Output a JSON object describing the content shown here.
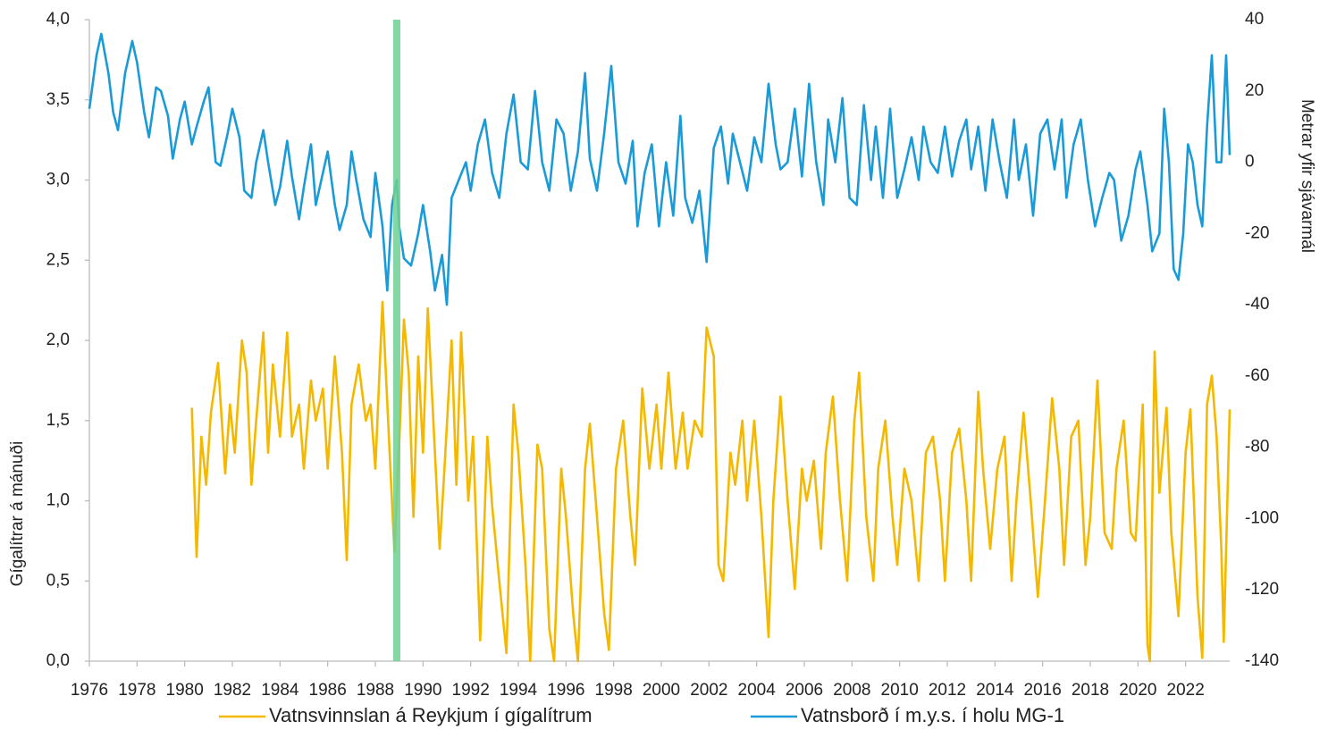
{
  "chart_data": {
    "type": "line",
    "y_title": "Gígalítrar á mánuði",
    "y2_title": "Metrar yfir sjávarmál",
    "xlim": [
      1976,
      2023.85
    ],
    "xticks": [
      1976,
      1978,
      1980,
      1982,
      1984,
      1986,
      1988,
      1990,
      1992,
      1994,
      1996,
      1998,
      2000,
      2002,
      2004,
      2006,
      2008,
      2010,
      2012,
      2014,
      2016,
      2018,
      2020,
      2022
    ],
    "ylim": [
      0,
      4
    ],
    "yticks": [
      {
        "value": 0,
        "label": "0,0"
      },
      {
        "value": 0.5,
        "label": "0,5"
      },
      {
        "value": 1,
        "label": "1,0"
      },
      {
        "value": 1.5,
        "label": "1,5"
      },
      {
        "value": 2,
        "label": "2,0"
      },
      {
        "value": 2.5,
        "label": "2,5"
      },
      {
        "value": 3,
        "label": "3,0"
      },
      {
        "value": 3.5,
        "label": "3,5"
      },
      {
        "value": 4,
        "label": "4,0"
      }
    ],
    "y2lim": [
      -140,
      40
    ],
    "y2ticks": [
      -140,
      -120,
      -100,
      -80,
      -60,
      -40,
      -20,
      0,
      20,
      40
    ],
    "highlight_x": 1988.9,
    "highlight_color": "#6fcf93",
    "series": [
      {
        "name": "Vatnsvinnslan á Reykjum í gígalítrum",
        "color": "#f5b800",
        "axis": "y",
        "x": [
          1980.3,
          1980.5,
          1980.7,
          1980.9,
          1981.1,
          1981.4,
          1981.7,
          1981.9,
          1982.1,
          1982.4,
          1982.6,
          1982.8,
          1983.0,
          1983.3,
          1983.5,
          1983.7,
          1984.0,
          1984.3,
          1984.5,
          1984.8,
          1985.0,
          1985.3,
          1985.5,
          1985.8,
          1986.0,
          1986.3,
          1986.6,
          1986.8,
          1987.0,
          1987.3,
          1987.6,
          1987.8,
          1988.0,
          1988.3,
          1988.6,
          1988.8,
          1989.0,
          1989.2,
          1989.4,
          1989.6,
          1989.8,
          1990.0,
          1990.2,
          1990.5,
          1990.7,
          1990.9,
          1991.2,
          1991.4,
          1991.6,
          1991.9,
          1992.1,
          1992.4,
          1992.7,
          1992.9,
          1993.2,
          1993.5,
          1993.8,
          1994.0,
          1994.3,
          1994.5,
          1994.8,
          1995.0,
          1995.3,
          1995.5,
          1995.8,
          1996.0,
          1996.3,
          1996.5,
          1996.8,
          1997.0,
          1997.3,
          1997.6,
          1997.8,
          1998.1,
          1998.4,
          1998.7,
          1998.9,
          1999.2,
          1999.5,
          1999.8,
          2000.0,
          2000.3,
          2000.6,
          2000.9,
          2001.1,
          2001.4,
          2001.7,
          2001.9,
          2002.2,
          2002.4,
          2002.6,
          2002.9,
          2003.1,
          2003.4,
          2003.6,
          2003.9,
          2004.2,
          2004.5,
          2004.7,
          2005.0,
          2005.3,
          2005.6,
          2005.9,
          2006.1,
          2006.4,
          2006.7,
          2006.9,
          2007.2,
          2007.5,
          2007.8,
          2008.1,
          2008.3,
          2008.6,
          2008.9,
          2009.1,
          2009.4,
          2009.7,
          2009.9,
          2010.2,
          2010.5,
          2010.8,
          2011.1,
          2011.4,
          2011.7,
          2011.9,
          2012.2,
          2012.5,
          2012.8,
          2013.0,
          2013.3,
          2013.5,
          2013.8,
          2014.1,
          2014.4,
          2014.7,
          2014.9,
          2015.2,
          2015.5,
          2015.8,
          2016.1,
          2016.4,
          2016.7,
          2016.9,
          2017.2,
          2017.5,
          2017.8,
          2018.0,
          2018.3,
          2018.6,
          2018.9,
          2019.1,
          2019.4,
          2019.7,
          2019.9,
          2020.2,
          2020.4,
          2020.5,
          2020.7,
          2020.9,
          2021.2,
          2021.4,
          2021.7,
          2022.0,
          2022.2,
          2022.5,
          2022.7,
          2022.9,
          2023.1,
          2023.3,
          2023.5,
          2023.6,
          2023.85
        ],
        "values": [
          1.58,
          0.65,
          1.4,
          1.1,
          1.55,
          1.86,
          1.17,
          1.6,
          1.3,
          2.0,
          1.8,
          1.1,
          1.5,
          2.05,
          1.3,
          1.85,
          1.4,
          2.05,
          1.4,
          1.6,
          1.2,
          1.75,
          1.5,
          1.7,
          1.2,
          1.9,
          1.3,
          0.63,
          1.6,
          1.85,
          1.5,
          1.6,
          1.2,
          2.24,
          1.3,
          0.68,
          1.35,
          2.13,
          1.8,
          0.9,
          1.9,
          1.3,
          2.2,
          1.3,
          0.7,
          1.2,
          2.0,
          1.1,
          2.05,
          1.0,
          1.4,
          0.13,
          1.4,
          0.97,
          0.5,
          0.05,
          1.6,
          1.3,
          0.6,
          0.0,
          1.35,
          1.2,
          0.2,
          0.0,
          1.2,
          0.9,
          0.3,
          0.0,
          1.2,
          1.48,
          0.9,
          0.3,
          0.07,
          1.2,
          1.5,
          0.9,
          0.6,
          1.7,
          1.2,
          1.6,
          1.2,
          1.8,
          1.2,
          1.55,
          1.2,
          1.5,
          1.4,
          2.08,
          1.9,
          0.6,
          0.5,
          1.3,
          1.1,
          1.5,
          1.0,
          1.5,
          0.9,
          0.15,
          1.0,
          1.65,
          1.0,
          0.45,
          1.2,
          1.0,
          1.25,
          0.7,
          1.3,
          1.65,
          1.0,
          0.5,
          1.5,
          1.8,
          0.9,
          0.5,
          1.2,
          1.5,
          0.9,
          0.6,
          1.2,
          1.0,
          0.5,
          1.3,
          1.4,
          1.0,
          0.5,
          1.3,
          1.45,
          1.0,
          0.5,
          1.68,
          1.2,
          0.7,
          1.2,
          1.4,
          0.5,
          1.0,
          1.55,
          1.0,
          0.4,
          1.0,
          1.64,
          1.2,
          0.6,
          1.4,
          1.5,
          0.6,
          0.9,
          1.75,
          0.8,
          0.7,
          1.2,
          1.5,
          0.8,
          0.75,
          1.6,
          0.1,
          0.0,
          1.93,
          1.05,
          1.58,
          0.8,
          0.28,
          1.3,
          1.57,
          0.4,
          0.02,
          1.6,
          1.78,
          1.4,
          0.7,
          0.12,
          1.57
        ]
      },
      {
        "name": "Vatnsborð í m.y.s. í holu MG-1",
        "color": "#1a9bd7",
        "axis": "y2",
        "x": [
          1976.0,
          1976.3,
          1976.5,
          1976.8,
          1977.0,
          1977.2,
          1977.5,
          1977.8,
          1978.0,
          1978.3,
          1978.5,
          1978.8,
          1979.0,
          1979.3,
          1979.5,
          1979.8,
          1980.0,
          1980.3,
          1980.5,
          1980.8,
          1981.0,
          1981.3,
          1981.5,
          1981.8,
          1982.0,
          1982.3,
          1982.5,
          1982.8,
          1983.0,
          1983.3,
          1983.5,
          1983.8,
          1984.0,
          1984.3,
          1984.5,
          1984.8,
          1985.0,
          1985.3,
          1985.5,
          1985.8,
          1986.0,
          1986.3,
          1986.5,
          1986.8,
          1987.0,
          1987.2,
          1987.5,
          1987.8,
          1988.0,
          1988.3,
          1988.5,
          1988.7,
          1988.9,
          1989.0,
          1989.2,
          1989.5,
          1989.8,
          1990.0,
          1990.3,
          1990.5,
          1990.8,
          1991.0,
          1991.2,
          1991.5,
          1991.8,
          1992.0,
          1992.3,
          1992.6,
          1992.9,
          1993.2,
          1993.5,
          1993.8,
          1994.1,
          1994.4,
          1994.7,
          1995.0,
          1995.3,
          1995.6,
          1995.9,
          1996.2,
          1996.5,
          1996.8,
          1997.0,
          1997.3,
          1997.6,
          1997.9,
          1998.2,
          1998.5,
          1998.8,
          1999.0,
          1999.3,
          1999.6,
          1999.9,
          2000.2,
          2000.5,
          2000.8,
          2001.0,
          2001.3,
          2001.6,
          2001.9,
          2002.2,
          2002.5,
          2002.8,
          2003.0,
          2003.3,
          2003.6,
          2003.9,
          2004.2,
          2004.5,
          2004.8,
          2005.0,
          2005.3,
          2005.6,
          2005.9,
          2006.2,
          2006.5,
          2006.8,
          2007.0,
          2007.3,
          2007.6,
          2007.9,
          2008.2,
          2008.5,
          2008.8,
          2009.0,
          2009.3,
          2009.6,
          2009.9,
          2010.2,
          2010.5,
          2010.8,
          2011.0,
          2011.3,
          2011.6,
          2011.9,
          2012.2,
          2012.5,
          2012.8,
          2013.0,
          2013.3,
          2013.6,
          2013.9,
          2014.2,
          2014.5,
          2014.8,
          2015.0,
          2015.3,
          2015.6,
          2015.9,
          2016.2,
          2016.5,
          2016.8,
          2017.0,
          2017.3,
          2017.6,
          2017.9,
          2018.2,
          2018.5,
          2018.8,
          2019.0,
          2019.3,
          2019.6,
          2019.9,
          2020.1,
          2020.4,
          2020.6,
          2020.9,
          2021.1,
          2021.3,
          2021.5,
          2021.7,
          2021.9,
          2022.1,
          2022.3,
          2022.5,
          2022.7,
          2022.9,
          2023.1,
          2023.3,
          2023.5,
          2023.7,
          2023.85
        ],
        "values": [
          15,
          30,
          36,
          25,
          14,
          9,
          25,
          34,
          28,
          14,
          7,
          21,
          20,
          13,
          1,
          12,
          17,
          5,
          10,
          17,
          21,
          0,
          -1,
          8,
          15,
          7,
          -8,
          -10,
          0,
          9,
          0,
          -12,
          -7,
          6,
          -4,
          -16,
          -7,
          5,
          -12,
          -3,
          3,
          -12,
          -19,
          -12,
          3,
          -5,
          -16,
          -21,
          -3,
          -18,
          -36,
          -12,
          -5,
          -18,
          -27,
          -29,
          -20,
          -12,
          -25,
          -36,
          -26,
          -40,
          -10,
          -5,
          0,
          -8,
          5,
          12,
          -3,
          -10,
          8,
          19,
          0,
          -2,
          20,
          0,
          -8,
          12,
          8,
          -8,
          3,
          25,
          1,
          -8,
          8,
          27,
          0,
          -6,
          6,
          -18,
          -3,
          5,
          -18,
          0,
          -15,
          13,
          -10,
          -17,
          -8,
          -28,
          4,
          10,
          -6,
          8,
          0,
          -8,
          7,
          0,
          22,
          5,
          -2,
          0,
          15,
          -4,
          22,
          0,
          -12,
          12,
          0,
          18,
          -10,
          -12,
          16,
          -5,
          10,
          -10,
          15,
          -10,
          -2,
          7,
          -5,
          10,
          0,
          -3,
          10,
          -4,
          6,
          12,
          -2,
          10,
          -8,
          12,
          0,
          -10,
          12,
          -5,
          5,
          -15,
          8,
          12,
          -2,
          12,
          -10,
          5,
          12,
          -5,
          -18,
          -10,
          -3,
          -5,
          -22,
          -15,
          -2,
          3,
          -12,
          -25,
          -20,
          15,
          0,
          -30,
          -33,
          -20,
          5,
          0,
          -12,
          -18,
          10,
          30,
          0,
          0,
          30,
          2
        ]
      }
    ]
  }
}
